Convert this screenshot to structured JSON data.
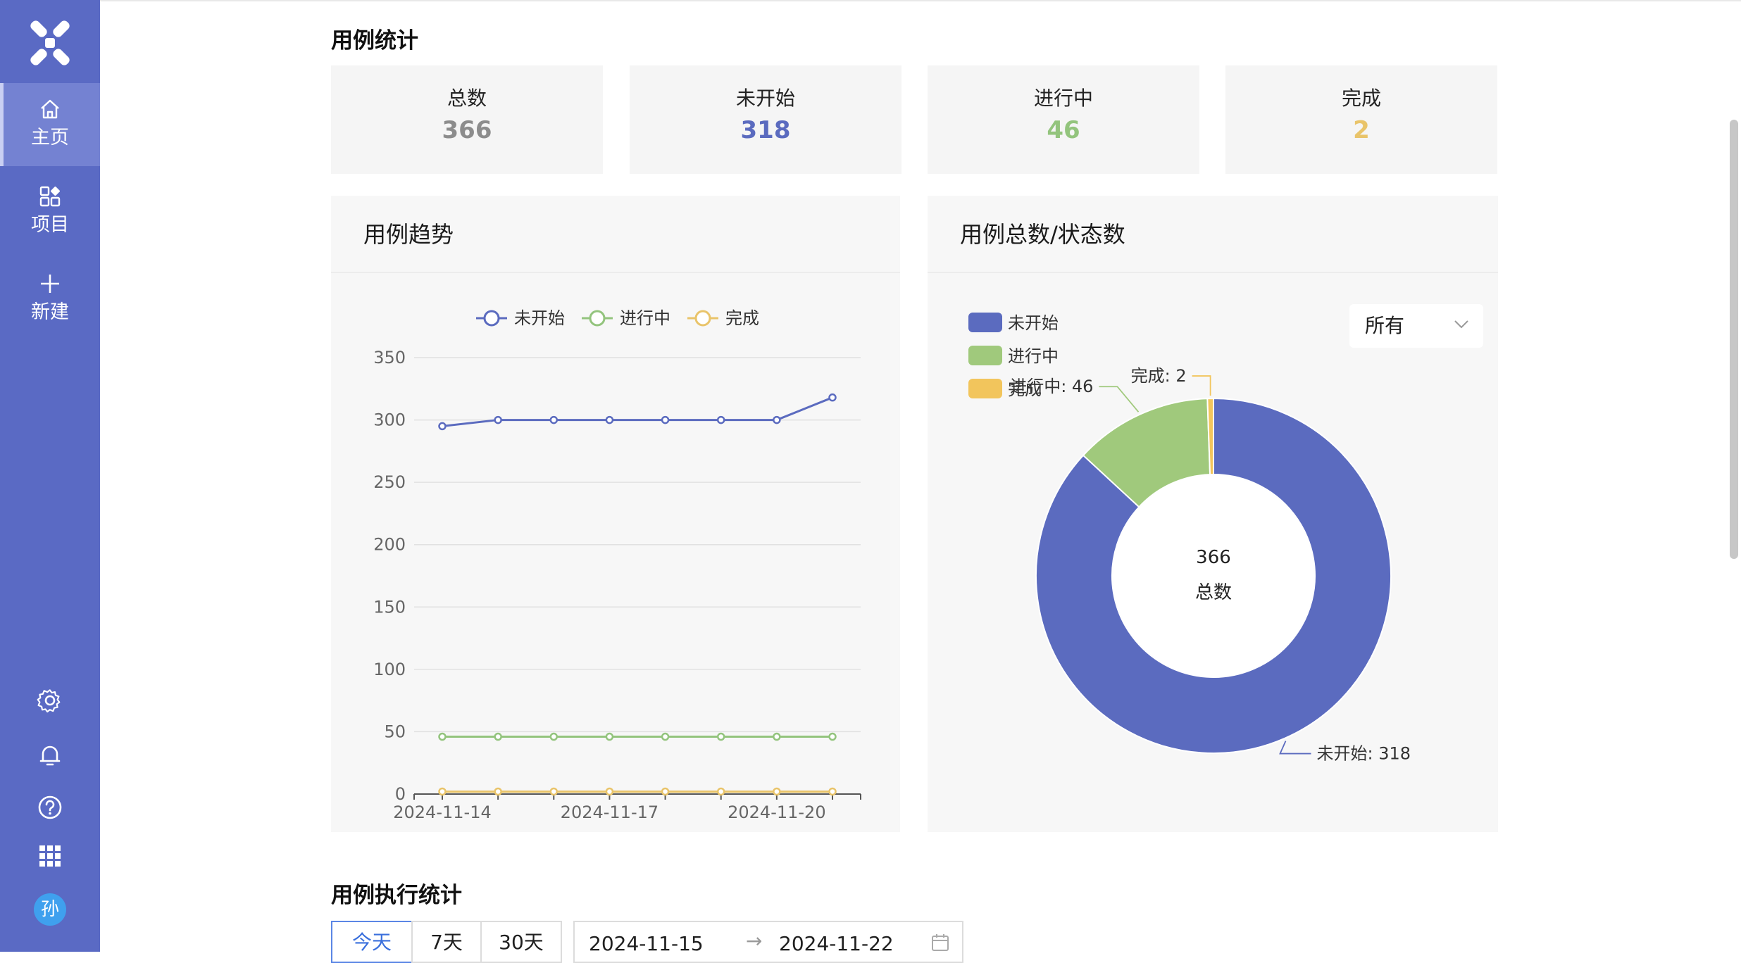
{
  "sidebar": {
    "nav": [
      {
        "label": "主页",
        "icon": "home-icon",
        "active": true
      },
      {
        "label": "项目",
        "icon": "apps-icon",
        "active": false
      },
      {
        "label": "新建",
        "icon": "plus-icon",
        "active": false
      }
    ],
    "bottom_icons": [
      "settings-icon",
      "bell-icon",
      "help-icon",
      "grid-icon"
    ],
    "avatar_text": "孙"
  },
  "stats_section": {
    "title": "用例统计",
    "cards": [
      {
        "label": "总数",
        "value": "366",
        "color": "#8c8c8c"
      },
      {
        "label": "未开始",
        "value": "318",
        "color": "#5b6bbf"
      },
      {
        "label": "进行中",
        "value": "46",
        "color": "#93c47d"
      },
      {
        "label": "完成",
        "value": "2",
        "color": "#e9c46a"
      }
    ]
  },
  "trend_panel": {
    "title": "用例趋势"
  },
  "donut_panel": {
    "title": "用例总数/状态数",
    "filter_value": "所有"
  },
  "exec_section": {
    "title": "用例执行统计",
    "range_buttons": [
      "今天",
      "7天",
      "30天"
    ],
    "active_range": "今天",
    "date_start": "2024-11-15",
    "date_separator": "→",
    "date_end": "2024-11-22"
  },
  "chart_data": [
    {
      "type": "line",
      "x": [
        "2024-11-14",
        "2024-11-15",
        "2024-11-16",
        "2024-11-17",
        "2024-11-18",
        "2024-11-19",
        "2024-11-20",
        "2024-11-21"
      ],
      "x_tick_labels": [
        "2024-11-14",
        "2024-11-17",
        "2024-11-20"
      ],
      "ylim": [
        0,
        350
      ],
      "y_ticks": [
        0,
        50,
        100,
        150,
        200,
        250,
        300,
        350
      ],
      "grid": true,
      "legend_position": "top-center",
      "series": [
        {
          "name": "未开始",
          "color": "#5b6bbf",
          "values": [
            295,
            300,
            300,
            300,
            300,
            300,
            300,
            318
          ]
        },
        {
          "name": "进行中",
          "color": "#93c47d",
          "values": [
            46,
            46,
            46,
            46,
            46,
            46,
            46,
            46
          ]
        },
        {
          "name": "完成",
          "color": "#e9c46a",
          "values": [
            2,
            2,
            2,
            2,
            2,
            2,
            2,
            2
          ]
        }
      ]
    },
    {
      "type": "pie",
      "donut": true,
      "center_value": "366",
      "center_label": "总数",
      "legend_position": "top-left",
      "slices": [
        {
          "name": "未开始",
          "value": 318,
          "color": "#5b6bbf",
          "label": "未开始: 318"
        },
        {
          "name": "进行中",
          "value": 46,
          "color": "#a0c97c",
          "label": "进行中: 46"
        },
        {
          "name": "完成",
          "value": 2,
          "color": "#f2c55c",
          "label": "完成: 2"
        }
      ]
    }
  ]
}
